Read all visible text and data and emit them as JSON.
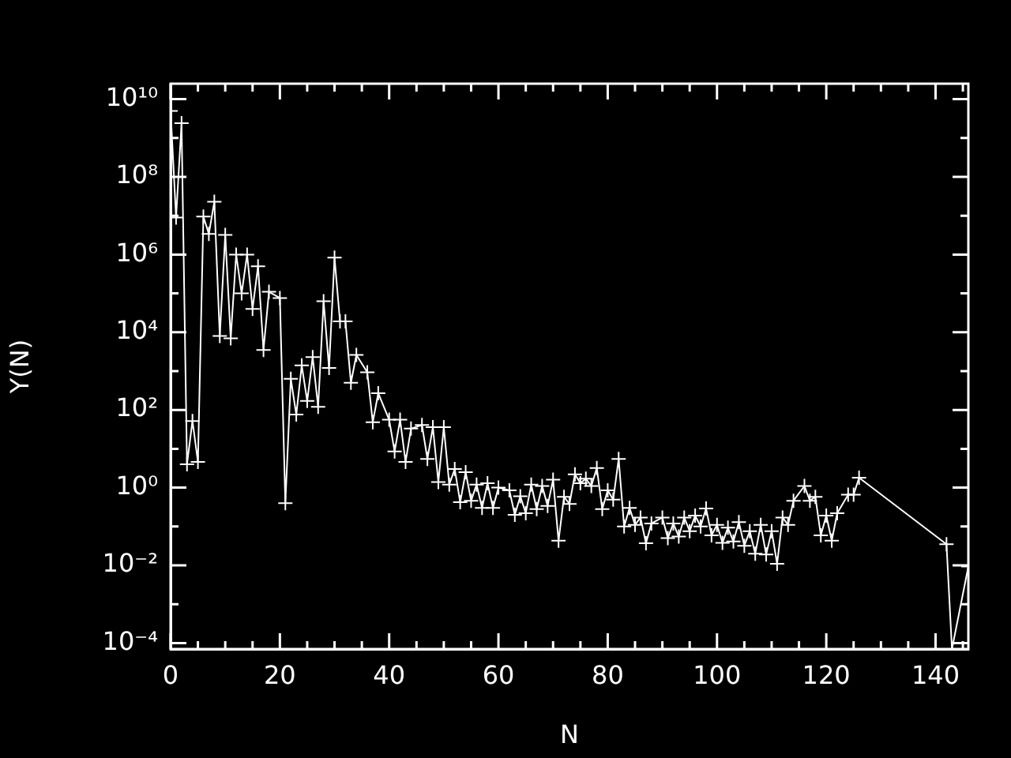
{
  "chart_data": {
    "type": "line",
    "xlabel": "N",
    "ylabel": "Y(N)",
    "log": "y",
    "grid": false,
    "legend": false,
    "marker": "cross",
    "line_style": "solid",
    "xlim": [
      0,
      146
    ],
    "xticks": [
      0,
      {
        "value": 5,
        "label": null
      },
      {
        "value": 10,
        "label": null
      },
      {
        "value": 15,
        "label": null
      },
      20,
      {
        "value": 25,
        "label": null
      },
      {
        "value": 30,
        "label": null
      },
      {
        "value": 35,
        "label": null
      },
      40,
      {
        "value": 45,
        "label": null
      },
      {
        "value": 50,
        "label": null
      },
      {
        "value": 55,
        "label": null
      },
      60,
      {
        "value": 65,
        "label": null
      },
      {
        "value": 70,
        "label": null
      },
      {
        "value": 75,
        "label": null
      },
      80,
      {
        "value": 85,
        "label": null
      },
      {
        "value": 90,
        "label": null
      },
      {
        "value": 95,
        "label": null
      },
      100,
      {
        "value": 105,
        "label": null
      },
      {
        "value": 110,
        "label": null
      },
      {
        "value": 115,
        "label": null
      },
      120,
      {
        "value": 125,
        "label": null
      },
      {
        "value": 130,
        "label": null
      },
      {
        "value": 135,
        "label": null
      },
      140,
      {
        "value": 145,
        "label": null
      }
    ],
    "ylim": [
      7e-05,
      25000000000.0
    ],
    "yticks": [
      {
        "value": 0.0001,
        "label": "10⁻⁴"
      },
      {
        "value": 0.001,
        "label": null
      },
      {
        "value": 0.01,
        "label": "10⁻²"
      },
      {
        "value": 0.1,
        "label": null
      },
      {
        "value": 1,
        "label": "10⁰"
      },
      {
        "value": 10,
        "label": null
      },
      {
        "value": 100,
        "label": "10²"
      },
      {
        "value": 1000.0,
        "label": null
      },
      {
        "value": 10000.0,
        "label": "10⁴"
      },
      {
        "value": 100000.0,
        "label": null
      },
      {
        "value": 1000000.0,
        "label": "10⁶"
      },
      {
        "value": 10000000.0,
        "label": null
      },
      {
        "value": 100000000.0,
        "label": "10⁸"
      },
      {
        "value": 1000000000.0,
        "label": null
      },
      {
        "value": 10000000000.0,
        "label": "10¹⁰"
      }
    ],
    "series": [
      {
        "color": "#ffffff",
        "x": [
          0,
          1,
          2,
          3,
          4,
          5,
          6,
          7,
          8,
          9,
          10,
          11,
          12,
          13,
          14,
          15,
          16,
          17,
          18,
          20,
          21,
          22,
          23,
          24,
          25,
          26,
          27,
          28,
          29,
          30,
          31,
          32,
          33,
          34,
          36,
          37,
          38,
          40,
          41,
          42,
          43,
          44,
          46,
          47,
          48,
          49,
          50,
          51,
          52,
          53,
          54,
          55,
          56,
          57,
          58,
          59,
          60,
          62,
          63,
          64,
          65,
          66,
          67,
          68,
          69,
          70,
          71,
          72,
          73,
          74,
          75,
          76,
          77,
          78,
          79,
          80,
          81,
          82,
          83,
          84,
          85,
          86,
          87,
          88,
          90,
          91,
          92,
          93,
          94,
          95,
          96,
          97,
          98,
          99,
          100,
          101,
          102,
          103,
          104,
          105,
          106,
          107,
          108,
          109,
          110,
          111,
          112,
          113,
          114,
          116,
          117,
          118,
          119,
          120,
          121,
          122,
          124,
          125,
          126,
          142,
          143,
          146
        ],
        "values": [
          5000000000.0,
          9000000.0,
          2400000000.0,
          4,
          52,
          4.6,
          9500000.0,
          3400000.0,
          23000000.0,
          8000.0,
          3200000.0,
          7000.0,
          1000000.0,
          100000.0,
          1000000.0,
          40000.0,
          500000.0,
          3500.0,
          110000.0,
          76000.0,
          0.4,
          630,
          76,
          1400.0,
          170,
          2300.0,
          120,
          63000.0,
          1200.0,
          830000.0,
          19000.0,
          19000.0,
          500,
          2600.0,
          930,
          48,
          270,
          56,
          8.5,
          56,
          4.6,
          33,
          41,
          5.5,
          36,
          1.4,
          36,
          1.2,
          3,
          0.42,
          2.5,
          0.46,
          1.2,
          0.3,
          1.3,
          0.3,
          1,
          0.85,
          0.2,
          0.6,
          0.22,
          1.2,
          0.28,
          1.1,
          0.34,
          1.6,
          0.043,
          0.58,
          0.38,
          2.2,
          1.3,
          1.7,
          1.1,
          3.2,
          0.28,
          0.85,
          0.49,
          5.5,
          0.1,
          0.3,
          0.11,
          0.17,
          0.037,
          0.12,
          0.17,
          0.05,
          0.12,
          0.055,
          0.17,
          0.076,
          0.19,
          0.1,
          0.29,
          0.059,
          0.11,
          0.038,
          0.093,
          0.041,
          0.13,
          0.032,
          0.076,
          0.02,
          0.11,
          0.019,
          0.076,
          0.011,
          0.17,
          0.11,
          0.46,
          1.1,
          0.46,
          0.58,
          0.059,
          0.19,
          0.043,
          0.22,
          0.66,
          0.66,
          1.8,
          0.035,
          7e-05,
          0.0093
        ]
      }
    ]
  }
}
